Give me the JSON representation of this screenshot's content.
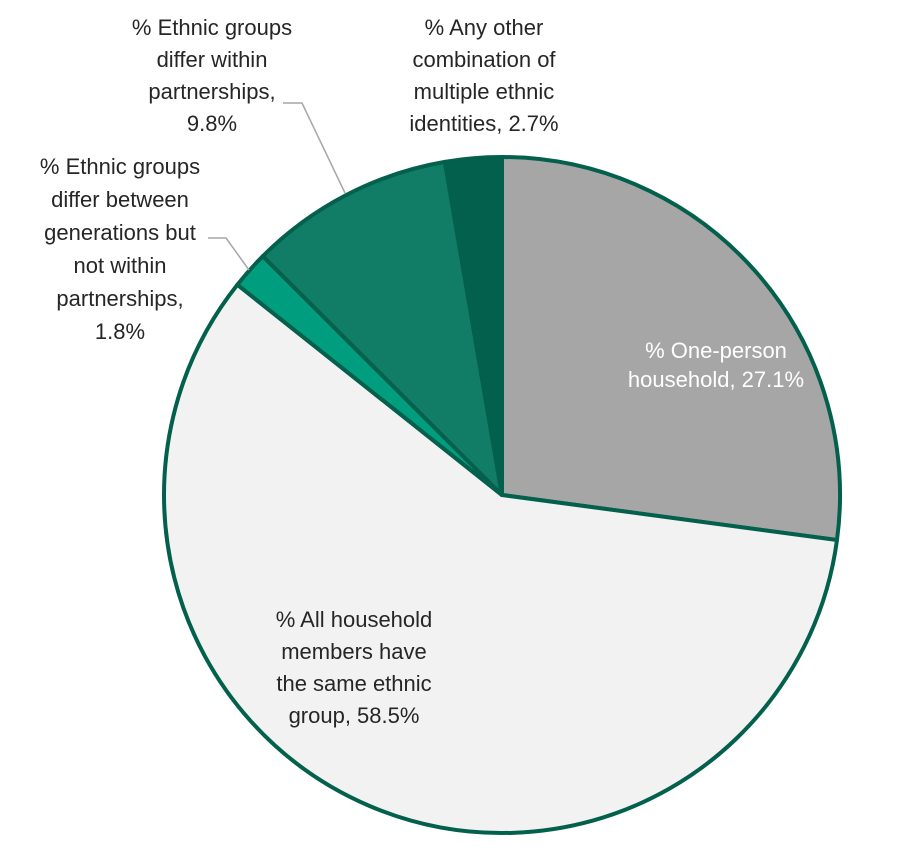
{
  "chart_data": {
    "type": "pie",
    "title": "",
    "start_angle_deg": 0,
    "direction": "clockwise",
    "slices": [
      {
        "label": "% One-person household",
        "value": 27.1,
        "display": "27.1%",
        "color": "#a6a6a6",
        "text_color": "#ffffff",
        "label_lines": [
          "% One-person",
          "household, 27.1%"
        ]
      },
      {
        "label": "% All household members have the same ethnic group",
        "value": 58.5,
        "display": "58.5%",
        "color": "#f2f2f2",
        "text_color": "#262626",
        "label_lines": [
          "% All household",
          "members have",
          "the same ethnic",
          "group, 58.5%"
        ]
      },
      {
        "label": "% Ethnic groups differ between generations but not within partnerships",
        "value": 1.8,
        "display": "1.8%",
        "color": "#009e7f",
        "text_color": "#262626",
        "label_lines": [
          "% Ethnic groups",
          "differ between",
          "generations but",
          "not within",
          "partnerships,",
          "1.8%"
        ]
      },
      {
        "label": "% Ethnic groups differ within partnerships",
        "value": 9.8,
        "display": "9.8%",
        "color": "#127d66",
        "text_color": "#262626",
        "label_lines": [
          "% Ethnic groups",
          "differ within",
          "partnerships,",
          "9.8%"
        ]
      },
      {
        "label": "% Any other combination of multiple ethnic identities",
        "value": 2.7,
        "display": "2.7%",
        "color": "#03604d",
        "text_color": "#262626",
        "label_lines": [
          "% Any other",
          "combination of",
          "multiple ethnic",
          "identities, 2.7%"
        ]
      }
    ],
    "border_color": "#03604d",
    "leader_line_color": "#a6a6a6"
  }
}
